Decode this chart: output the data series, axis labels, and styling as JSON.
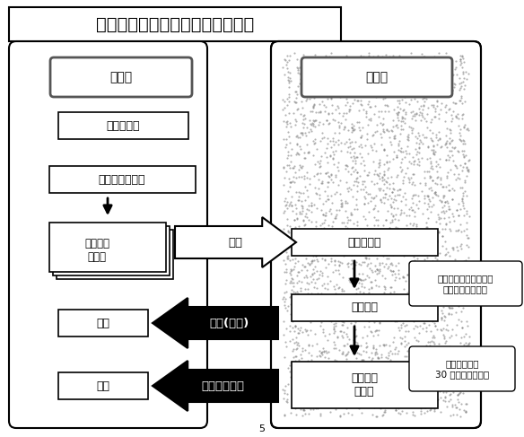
{
  "title": "補助金が振り込まれるまでの流れ",
  "bg_color": "#ffffff",
  "申請者": "申請者",
  "所沢市": "所沢市",
  "見積契約": "見積・契約",
  "工事支払": "工事支払・引渡",
  "申請書兼": "申請書兼",
  "請求書": "請求書",
  "受領1": "受領",
  "受領2": "受領",
  "受付審査": "受付・審査",
  "交付決定": "交付決定",
  "指定口座": "指定口座",
  "へ振込": "へ振込",
  "提出": "提出",
  "通知郵送": "通知(郵送)",
  "補助金振込": "補助金の振込",
  "note1_line1": "受付から交付決定まで",
  "note1_line2": "概ね１か月です。",
  "note2_line1": "通知発送後、",
  "note2_line2": "30 日以内の振込み",
  "page_num": "5"
}
